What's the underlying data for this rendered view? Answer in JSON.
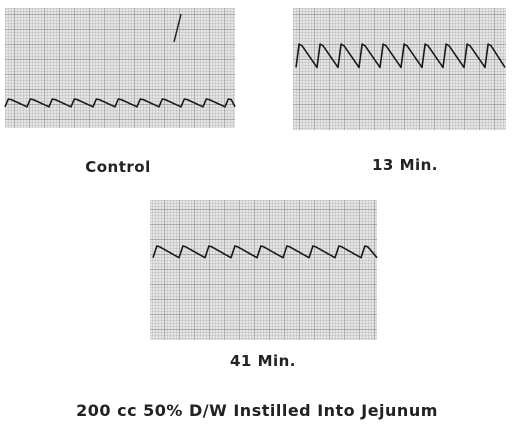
{
  "panels": [
    {
      "label": "Control"
    },
    {
      "label": "13 Min."
    },
    {
      "label": "41 Min."
    }
  ],
  "caption": "200 cc 50% D/W Instilled Into Jejunum"
}
